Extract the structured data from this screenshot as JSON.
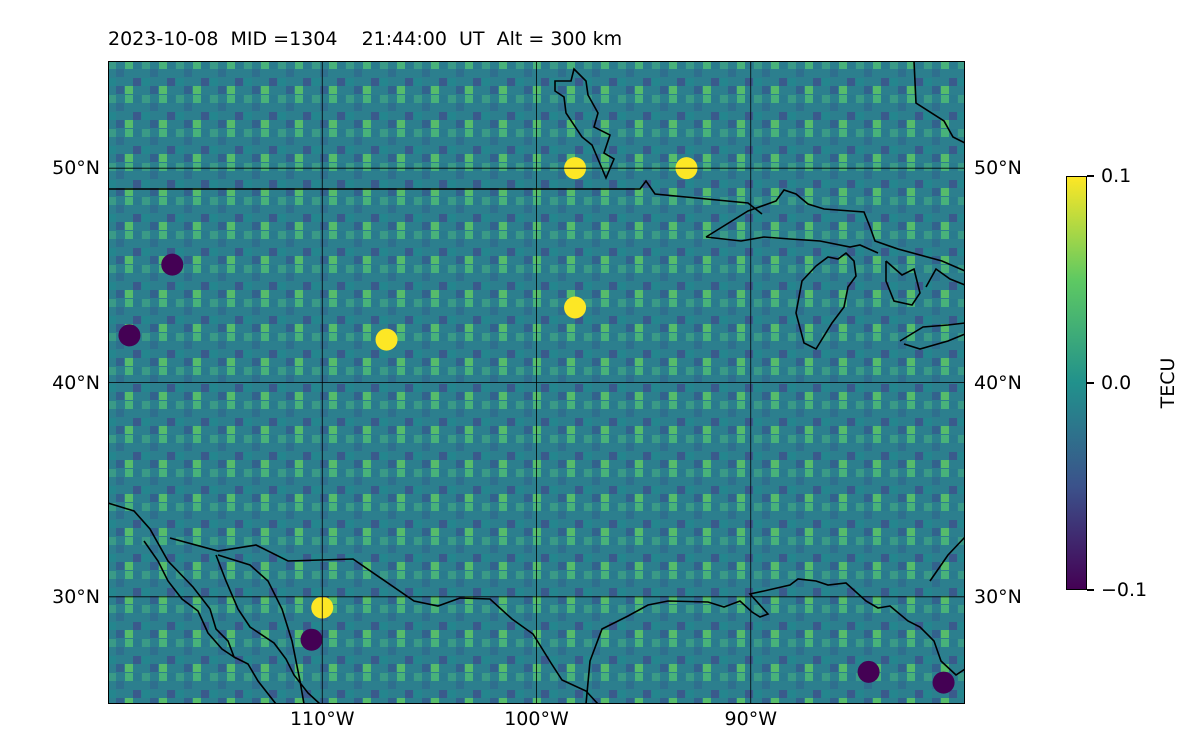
{
  "title": "2023-10-08  MID =1304    21:44:00  UT  Alt = 300 km",
  "map": {
    "projection": "plate-carree",
    "lon_range": [
      -120,
      -80
    ],
    "lat_range": [
      25,
      55
    ],
    "lat_labels": [
      {
        "value": 50,
        "left_label": "50°N",
        "right_label": "50°N"
      },
      {
        "value": 40,
        "left_label": "40°N",
        "right_label": "40°N"
      },
      {
        "value": 30,
        "left_label": "30°N",
        "right_label": "30°N"
      }
    ],
    "lon_labels": [
      {
        "value": -110,
        "label": "110°W"
      },
      {
        "value": -100,
        "label": "100°W"
      },
      {
        "value": -90,
        "label": "90°W"
      }
    ],
    "gridlines": true,
    "coastlines": true,
    "borders": true,
    "field": "TEC perturbation, noisy gridded field with values mostly near 0",
    "hotspots": [
      {
        "lon": -107.0,
        "lat": 42.0,
        "value": 0.09
      },
      {
        "lon": -98.2,
        "lat": 43.5,
        "value": 0.1
      },
      {
        "lon": -98.2,
        "lat": 50.0,
        "value": 0.1
      },
      {
        "lon": -110.5,
        "lat": 28.0,
        "value": -0.1
      },
      {
        "lon": -110.0,
        "lat": 29.5,
        "value": 0.1
      },
      {
        "lon": -84.5,
        "lat": 26.5,
        "value": -0.1
      },
      {
        "lon": -93,
        "lat": 50.0,
        "value": 0.1
      },
      {
        "lon": -81.0,
        "lat": 26.0,
        "value": -0.1
      },
      {
        "lon": -117.0,
        "lat": 45.5,
        "value": -0.09
      },
      {
        "lon": -119.0,
        "lat": 42.2,
        "value": -0.08
      }
    ]
  },
  "colorbar": {
    "colormap": "viridis",
    "label": "TECU",
    "min": -0.1,
    "max": 0.1,
    "ticks": [
      {
        "value": 0.1,
        "label": "0.1"
      },
      {
        "value": 0.0,
        "label": "0.0"
      },
      {
        "value": -0.1,
        "label": "−0.1"
      }
    ]
  },
  "colors": {
    "viridis": [
      "#440154",
      "#3b528b",
      "#21918c",
      "#5ec962",
      "#fde725"
    ],
    "coastline": "#000000",
    "gridline": "#000000"
  }
}
